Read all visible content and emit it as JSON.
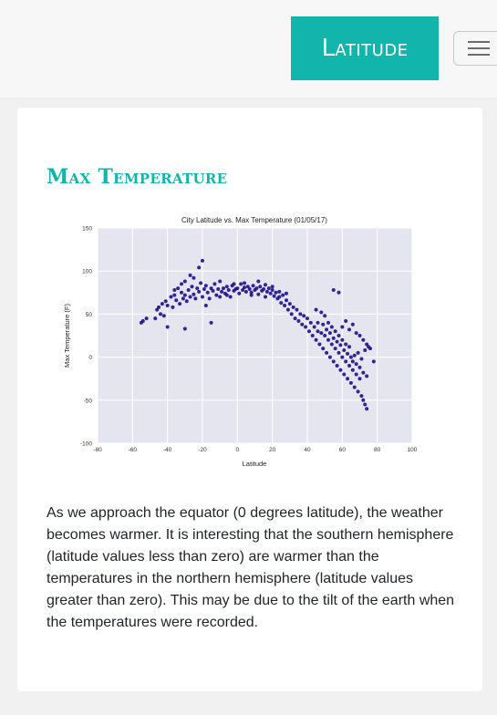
{
  "navbar": {
    "brand": "Latitude"
  },
  "card": {
    "title": "Max Temperature",
    "description": "As we approach the equator (0 degrees latitude), the weather becomes warmer. It is interesting that the southern hemisphere (latitude values less than zero) are warmer than the temperatures in the northern hemisphere (latitude values greater than zero). This may be due to the tilt of the earth when the temperatures were recorded."
  },
  "colors": {
    "accent": "#12b5ac",
    "point": "#1d0f8a",
    "plot_bg": "#e5e5f0"
  },
  "chart_data": {
    "type": "scatter",
    "title": "City Latitude vs. Max Temperature (01/05/17)",
    "xlabel": "Latitude",
    "ylabel": "Max Temperature (F)",
    "xlim": [
      -80,
      100
    ],
    "ylim": [
      -100,
      150
    ],
    "xticks": [
      -80,
      -60,
      -40,
      -20,
      0,
      20,
      40,
      60,
      80,
      100
    ],
    "yticks": [
      -100,
      -50,
      0,
      50,
      100,
      150
    ],
    "grid": true,
    "series": [
      {
        "points": [
          [
            -55,
            40
          ],
          [
            -54,
            42
          ],
          [
            -52,
            45
          ],
          [
            -47,
            45
          ],
          [
            -46,
            55
          ],
          [
            -45,
            58
          ],
          [
            -44,
            50
          ],
          [
            -43,
            62
          ],
          [
            -42,
            48
          ],
          [
            -41,
            65
          ],
          [
            -40,
            60
          ],
          [
            -38,
            70
          ],
          [
            -37,
            58
          ],
          [
            -36,
            72
          ],
          [
            -35,
            66
          ],
          [
            -34,
            80
          ],
          [
            -33,
            62
          ],
          [
            -32,
            75
          ],
          [
            -31,
            68
          ],
          [
            -30,
            72
          ],
          [
            -30,
            33
          ],
          [
            -29,
            65
          ],
          [
            -28,
            78
          ],
          [
            -27,
            70
          ],
          [
            -26,
            82
          ],
          [
            -25,
            73
          ],
          [
            -24,
            68
          ],
          [
            -23,
            80
          ],
          [
            -22,
            76
          ],
          [
            -21,
            86
          ],
          [
            -20,
            70
          ],
          [
            -19,
            79
          ],
          [
            -18,
            83
          ],
          [
            -17,
            75
          ],
          [
            -16,
            68
          ],
          [
            -15,
            80
          ],
          [
            -14,
            77
          ],
          [
            -13,
            85
          ],
          [
            -12,
            72
          ],
          [
            -11,
            79
          ],
          [
            -10,
            88
          ],
          [
            -9,
            76
          ],
          [
            -8,
            80
          ],
          [
            -7,
            74
          ],
          [
            -6,
            82
          ],
          [
            -5,
            78
          ],
          [
            -4,
            70
          ],
          [
            -3,
            83
          ],
          [
            -2,
            77
          ],
          [
            -1,
            79
          ],
          [
            0,
            80
          ],
          [
            1,
            74
          ],
          [
            2,
            85
          ],
          [
            3,
            78
          ],
          [
            4,
            81
          ],
          [
            5,
            76
          ],
          [
            6,
            82
          ],
          [
            7,
            79
          ],
          [
            8,
            75
          ],
          [
            9,
            83
          ],
          [
            10,
            78
          ],
          [
            11,
            80
          ],
          [
            12,
            73
          ],
          [
            13,
            82
          ],
          [
            14,
            77
          ],
          [
            15,
            79
          ],
          [
            16,
            84
          ],
          [
            17,
            76
          ],
          [
            18,
            80
          ],
          [
            19,
            74
          ],
          [
            20,
            78
          ],
          [
            21,
            71
          ],
          [
            22,
            75
          ],
          [
            23,
            68
          ],
          [
            24,
            70
          ],
          [
            25,
            63
          ],
          [
            26,
            72
          ],
          [
            27,
            60
          ],
          [
            28,
            66
          ],
          [
            29,
            55
          ],
          [
            30,
            62
          ],
          [
            31,
            50
          ],
          [
            32,
            58
          ],
          [
            33,
            45
          ],
          [
            34,
            55
          ],
          [
            35,
            42
          ],
          [
            36,
            50
          ],
          [
            37,
            38
          ],
          [
            38,
            48
          ],
          [
            39,
            35
          ],
          [
            40,
            45
          ],
          [
            41,
            30
          ],
          [
            42,
            40
          ],
          [
            43,
            25
          ],
          [
            44,
            35
          ],
          [
            45,
            20
          ],
          [
            46,
            30
          ],
          [
            47,
            15
          ],
          [
            48,
            28
          ],
          [
            49,
            10
          ],
          [
            50,
            25
          ],
          [
            51,
            5
          ],
          [
            52,
            20
          ],
          [
            53,
            0
          ],
          [
            54,
            15
          ],
          [
            55,
            -5
          ],
          [
            56,
            10
          ],
          [
            57,
            -10
          ],
          [
            58,
            5
          ],
          [
            59,
            -15
          ],
          [
            60,
            0
          ],
          [
            61,
            -20
          ],
          [
            62,
            -5
          ],
          [
            63,
            -25
          ],
          [
            64,
            -10
          ],
          [
            65,
            -30
          ],
          [
            66,
            -15
          ],
          [
            67,
            -35
          ],
          [
            68,
            -20
          ],
          [
            69,
            -40
          ],
          [
            70,
            -25
          ],
          [
            71,
            -45
          ],
          [
            72,
            -50
          ],
          [
            73,
            -55
          ],
          [
            74,
            -60
          ],
          [
            55,
            78
          ],
          [
            58,
            75
          ],
          [
            60,
            35
          ],
          [
            62,
            42
          ],
          [
            64,
            32
          ],
          [
            66,
            38
          ],
          [
            68,
            28
          ],
          [
            70,
            25
          ],
          [
            72,
            20
          ],
          [
            74,
            15
          ],
          [
            76,
            10
          ],
          [
            78,
            -5
          ],
          [
            -40,
            35
          ],
          [
            -32,
            85
          ],
          [
            -27,
            95
          ],
          [
            -22,
            104
          ],
          [
            -20,
            112
          ],
          [
            -18,
            60
          ],
          [
            -15,
            40
          ],
          [
            -25,
            92
          ],
          [
            -36,
            78
          ],
          [
            -30,
            88
          ],
          [
            45,
            55
          ],
          [
            48,
            52
          ],
          [
            50,
            48
          ],
          [
            52,
            40
          ],
          [
            54,
            35
          ],
          [
            56,
            30
          ],
          [
            58,
            25
          ],
          [
            60,
            20
          ],
          [
            62,
            15
          ],
          [
            64,
            12
          ],
          [
            46,
            40
          ],
          [
            49,
            38
          ],
          [
            51,
            32
          ],
          [
            53,
            28
          ],
          [
            55,
            22
          ],
          [
            57,
            18
          ],
          [
            59,
            14
          ],
          [
            61,
            8
          ],
          [
            63,
            4
          ],
          [
            65,
            0
          ],
          [
            66,
            -5
          ],
          [
            67,
            2
          ],
          [
            68,
            -8
          ],
          [
            69,
            5
          ],
          [
            70,
            -12
          ],
          [
            71,
            -2
          ],
          [
            72,
            -18
          ],
          [
            73,
            8
          ],
          [
            74,
            -22
          ],
          [
            75,
            12
          ],
          [
            -10,
            70
          ],
          [
            -6,
            72
          ],
          [
            -2,
            85
          ],
          [
            4,
            86
          ],
          [
            8,
            72
          ],
          [
            12,
            88
          ],
          [
            16,
            70
          ],
          [
            20,
            82
          ],
          [
            24,
            76
          ],
          [
            28,
            74
          ]
        ]
      }
    ]
  }
}
